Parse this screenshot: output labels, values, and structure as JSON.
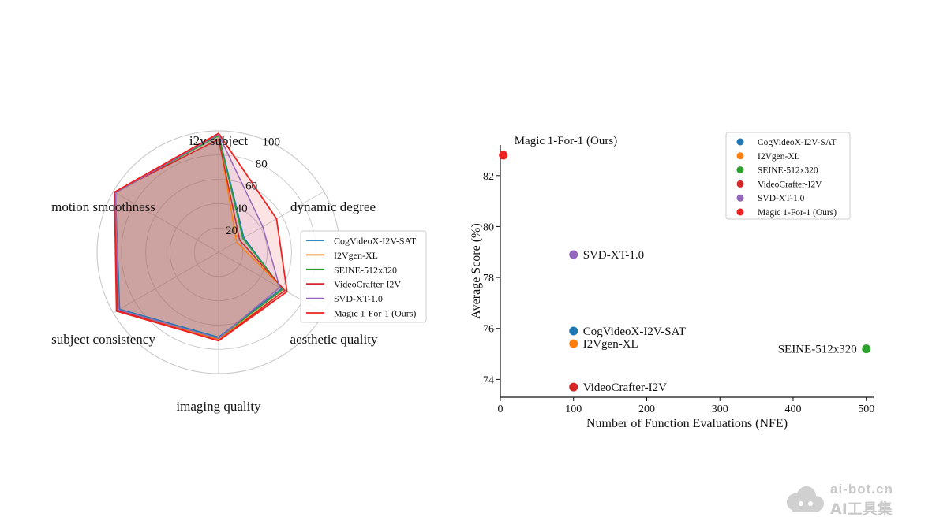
{
  "chart_data": [
    {
      "type": "radar",
      "axes": [
        "i2v subject",
        "dynamic degree",
        "aesthetic quality",
        "imaging quality",
        "subject consistency",
        "motion smoothness"
      ],
      "rticks": [
        20,
        40,
        60,
        80,
        100
      ],
      "rlim": [
        0,
        100
      ],
      "series": [
        {
          "name": "CogVideoX-I2V-SAT",
          "color": "#1f77b4",
          "values": [
            97,
            24,
            60,
            70,
            94,
            98
          ]
        },
        {
          "name": "I2Vgen-XL",
          "color": "#ff7f0e",
          "values": [
            96,
            17,
            63,
            72,
            95,
            98
          ]
        },
        {
          "name": "SEINE-512x320",
          "color": "#2ca02c",
          "values": [
            96,
            23,
            61,
            71,
            95,
            98
          ]
        },
        {
          "name": "VideoCrafter-I2V",
          "color": "#d62728",
          "values": [
            93,
            20,
            63,
            73,
            96,
            99
          ]
        },
        {
          "name": "SVD-XT-1.0",
          "color": "#9467bd",
          "values": [
            97,
            42,
            58,
            71,
            95,
            98
          ]
        },
        {
          "name": "Magic 1-For-1 (Ours)",
          "color": "#ee2222",
          "values": [
            98,
            55,
            65,
            73,
            97,
            99
          ]
        }
      ]
    },
    {
      "type": "scatter",
      "xlabel": "Number of Function Evaluations (NFE)",
      "ylabel": "Average Score (%)",
      "xlim": [
        0,
        510
      ],
      "ylim": [
        73.3,
        83.2
      ],
      "xticks": [
        0,
        100,
        200,
        300,
        400,
        500
      ],
      "yticks": [
        74,
        76,
        78,
        80,
        82
      ],
      "points": [
        {
          "name": "CogVideoX-I2V-SAT",
          "label": "CogVideoX-I2V-SAT",
          "x": 100,
          "y": 75.9,
          "color": "#1f77b4",
          "label_side": "right"
        },
        {
          "name": "I2Vgen-XL",
          "label": "I2Vgen-XL",
          "x": 100,
          "y": 75.4,
          "color": "#ff7f0e",
          "label_side": "right"
        },
        {
          "name": "SEINE-512x320",
          "label": "SEINE-512x320",
          "x": 500,
          "y": 75.2,
          "color": "#2ca02c",
          "label_side": "left"
        },
        {
          "name": "VideoCrafter-I2V",
          "label": "VideoCrafter-I2V",
          "x": 100,
          "y": 73.7,
          "color": "#d62728",
          "label_side": "right"
        },
        {
          "name": "SVD-XT-1.0",
          "label": "SVD-XT-1.0",
          "x": 100,
          "y": 78.9,
          "color": "#9467bd",
          "label_side": "right"
        },
        {
          "name": "Magic 1-For-1 (Ours)",
          "label": "Magic 1-For-1 (Ours)",
          "x": 4,
          "y": 82.8,
          "color": "#ee2222",
          "label_side": "above"
        }
      ],
      "legend": [
        {
          "name": "CogVideoX-I2V-SAT",
          "color": "#1f77b4"
        },
        {
          "name": "I2Vgen-XL",
          "color": "#ff7f0e"
        },
        {
          "name": "SEINE-512x320",
          "color": "#2ca02c"
        },
        {
          "name": "VideoCrafter-I2V",
          "color": "#d62728"
        },
        {
          "name": "SVD-XT-1.0",
          "color": "#9467bd"
        },
        {
          "name": "Magic 1-For-1 (Ours)",
          "color": "#ee2222"
        }
      ]
    }
  ],
  "watermark": {
    "line1": "ai-bot.cn",
    "line2": "AI工具集"
  }
}
